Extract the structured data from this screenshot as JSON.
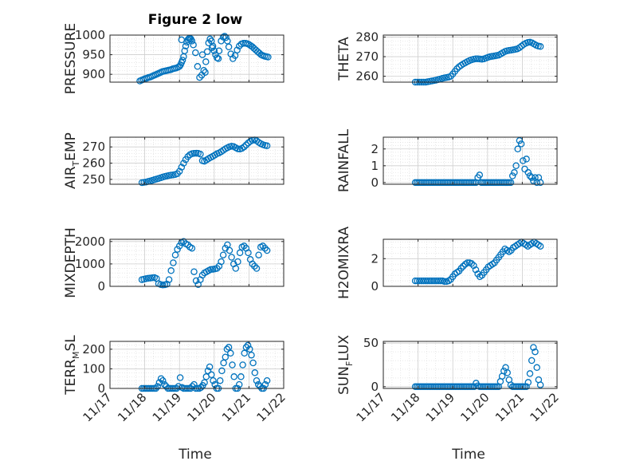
{
  "figure": {
    "title": "Figure 2 low",
    "xlabel": "Time",
    "xticks": [
      "11/17",
      "11/18",
      "11/19",
      "11/20",
      "11/21",
      "11/22"
    ],
    "marker_color": "#0072BD"
  },
  "chart_data": [
    {
      "type": "scatter",
      "ylabel": "PRESSURE",
      "xlim": [
        17.0,
        22.0
      ],
      "ylim": [
        880,
        1000
      ],
      "yticks": [
        900,
        950,
        1000
      ],
      "x": [
        17.86,
        17.91,
        17.96,
        18.01,
        18.06,
        18.11,
        18.16,
        18.21,
        18.26,
        18.31,
        18.36,
        18.41,
        18.46,
        18.51,
        18.56,
        18.61,
        18.66,
        18.71,
        18.76,
        18.81,
        18.86,
        18.91,
        18.96,
        19.0,
        19.03,
        19.06,
        19.09,
        19.12,
        19.15,
        19.18,
        19.21,
        19.24,
        19.27,
        19.3,
        19.33,
        19.36,
        19.4,
        19.46,
        19.52,
        19.58,
        19.64,
        19.7,
        19.76,
        19.8,
        19.84,
        19.88,
        19.92,
        19.96,
        20.0,
        20.04,
        20.08,
        20.14,
        20.2,
        20.26,
        20.3,
        20.34,
        20.38,
        20.42,
        20.48,
        20.54,
        20.6,
        20.66,
        20.72,
        20.78,
        20.84,
        20.9,
        20.95,
        21.0,
        21.05,
        21.1,
        21.15,
        21.2,
        21.25,
        21.3,
        21.35,
        21.4,
        21.45,
        21.5,
        21.55
      ],
      "y": [
        883,
        885,
        887,
        889,
        890,
        892,
        893,
        895,
        897,
        899,
        901,
        903,
        905,
        907,
        908,
        909,
        910,
        911,
        912,
        914,
        915,
        916,
        918,
        920,
        924,
        930,
        936,
        945,
        960,
        972,
        982,
        988,
        991,
        992,
        990,
        985,
        975,
        955,
        920,
        892,
        898,
        910,
        932,
        958,
        980,
        990,
        985,
        972,
        960,
        950,
        942,
        960,
        985,
        995,
        997,
        994,
        985,
        970,
        952,
        940,
        948,
        962,
        972,
        977,
        979,
        979,
        978,
        976,
        973,
        970,
        966,
        962,
        958,
        954,
        950,
        948,
        946,
        945,
        944
      ],
      "extra_points": [
        [
          19.06,
          988
        ],
        [
          19.66,
          950
        ],
        [
          19.74,
          905
        ],
        [
          19.94,
          968
        ],
        [
          20.12,
          940
        ]
      ]
    },
    {
      "type": "scatter",
      "ylabel": "THETA",
      "xlim": [
        17.0,
        22.0
      ],
      "ylim": [
        257,
        281
      ],
      "yticks": [
        260,
        270,
        280
      ],
      "x": [
        17.92,
        17.98,
        18.04,
        18.1,
        18.16,
        18.22,
        18.28,
        18.34,
        18.4,
        18.46,
        18.52,
        18.58,
        18.64,
        18.7,
        18.76,
        18.82,
        18.88,
        18.94,
        19.0,
        19.06,
        19.12,
        19.18,
        19.24,
        19.3,
        19.36,
        19.42,
        19.48,
        19.54,
        19.6,
        19.66,
        19.72,
        19.78,
        19.84,
        19.9,
        19.96,
        20.02,
        20.08,
        20.14,
        20.2,
        20.26,
        20.32,
        20.38,
        20.44,
        20.5,
        20.56,
        20.62,
        20.68,
        20.74,
        20.8,
        20.86,
        20.92,
        20.98,
        21.04,
        21.1,
        21.16,
        21.22,
        21.28,
        21.34,
        21.4,
        21.46,
        21.52
      ],
      "y": [
        257,
        257,
        257,
        257,
        257,
        257,
        257.2,
        257.4,
        257.6,
        257.8,
        258,
        258.3,
        258.6,
        258.9,
        259.2,
        259.4,
        259.6,
        260,
        261.2,
        262.5,
        263.8,
        264.8,
        265.6,
        266.3,
        266.9,
        267.5,
        268,
        268.4,
        268.7,
        268.9,
        268.9,
        268.8,
        268.7,
        268.9,
        269.3,
        269.7,
        270,
        270.2,
        270.4,
        270.6,
        270.8,
        271.4,
        272,
        272.6,
        273,
        273.2,
        273.3,
        273.5,
        273.7,
        274,
        274.6,
        275.4,
        276.2,
        276.8,
        277.2,
        277.4,
        277,
        276.4,
        275.8,
        275.4,
        275.2
      ]
    },
    {
      "type": "scatter",
      "ylabel": "AIR_TEMP",
      "ylabel_main": "AIR",
      "ylabel_sub": "T",
      "ylabel_tail": "EMP",
      "xlim": [
        17.0,
        22.0
      ],
      "ylim": [
        247,
        276
      ],
      "yticks": [
        250,
        260,
        270
      ],
      "x": [
        17.92,
        17.98,
        18.04,
        18.1,
        18.16,
        18.22,
        18.28,
        18.34,
        18.4,
        18.46,
        18.52,
        18.58,
        18.64,
        18.7,
        18.76,
        18.82,
        18.88,
        18.94,
        19.0,
        19.06,
        19.12,
        19.18,
        19.24,
        19.3,
        19.36,
        19.42,
        19.48,
        19.54,
        19.6,
        19.66,
        19.72,
        19.78,
        19.84,
        19.9,
        19.96,
        20.02,
        20.08,
        20.14,
        20.2,
        20.26,
        20.32,
        20.38,
        20.44,
        20.5,
        20.56,
        20.62,
        20.68,
        20.74,
        20.8,
        20.86,
        20.92,
        20.98,
        21.04,
        21.1,
        21.16,
        21.22,
        21.28,
        21.34,
        21.4,
        21.46,
        21.52
      ],
      "y": [
        248,
        248.2,
        248.4,
        248.7,
        249,
        249.4,
        249.8,
        250.2,
        250.6,
        251,
        251.4,
        251.8,
        252.1,
        252.4,
        252.6,
        252.8,
        253,
        253.5,
        255,
        257.5,
        260,
        262.2,
        264,
        265.2,
        265.8,
        266,
        266.1,
        266,
        265.6,
        261.5,
        261.2,
        262,
        262.8,
        263.5,
        264.2,
        265,
        265.8,
        266.3,
        267,
        267.9,
        268.8,
        269.5,
        270.1,
        270.4,
        270.2,
        269.5,
        268.8,
        268.7,
        269.1,
        270,
        271.2,
        272.4,
        273.4,
        274.1,
        274.3,
        273.8,
        272.8,
        272,
        271.4,
        271,
        270.7
      ]
    },
    {
      "type": "scatter",
      "ylabel": "RAINFALL",
      "xlim": [
        17.0,
        22.0
      ],
      "ylim": [
        -0.1,
        2.7
      ],
      "yticks": [
        0,
        1,
        2
      ],
      "x": [
        17.92,
        17.97,
        18.02,
        18.07,
        18.12,
        18.17,
        18.22,
        18.27,
        18.32,
        18.37,
        18.42,
        18.47,
        18.52,
        18.57,
        18.62,
        18.67,
        18.72,
        18.77,
        18.82,
        18.87,
        18.92,
        18.97,
        19.02,
        19.07,
        19.12,
        19.17,
        19.22,
        19.27,
        19.32,
        19.37,
        19.42,
        19.47,
        19.52,
        19.57,
        19.62,
        19.67,
        19.72,
        19.77,
        19.82,
        19.87,
        19.92,
        19.97,
        20.02,
        20.07,
        20.12,
        20.17,
        20.22,
        20.27,
        20.32,
        20.37,
        20.42,
        20.47,
        20.52,
        20.57,
        20.62,
        20.67,
        20.72,
        20.77,
        20.82,
        20.87,
        20.92,
        20.97,
        21.02,
        21.07,
        21.12,
        21.17,
        21.22,
        21.27,
        21.32,
        21.37,
        21.42,
        21.47,
        21.52
      ],
      "y": [
        0,
        0,
        0,
        0,
        0,
        0,
        0,
        0,
        0,
        0,
        0,
        0,
        0,
        0,
        0,
        0,
        0,
        0,
        0,
        0,
        0,
        0,
        0,
        0,
        0,
        0,
        0,
        0,
        0,
        0,
        0,
        0,
        0,
        0,
        0,
        0,
        0.3,
        0.45,
        0,
        0,
        0,
        0,
        0,
        0,
        0,
        0,
        0,
        0,
        0,
        0,
        0,
        0,
        0,
        0,
        0,
        0,
        0.4,
        0.6,
        1.0,
        2.0,
        2.5,
        2.3,
        1.3,
        0.8,
        1.4,
        0.6,
        0.4,
        0.3,
        0.1,
        0.3,
        0,
        0.3,
        0
      ]
    },
    {
      "type": "scatter",
      "ylabel": "MIXDEPTH",
      "xlim": [
        17.0,
        22.0
      ],
      "ylim": [
        0,
        2100
      ],
      "yticks": [
        0,
        1000,
        2000
      ],
      "x": [
        17.92,
        17.98,
        18.04,
        18.1,
        18.16,
        18.22,
        18.28,
        18.34,
        18.4,
        18.46,
        18.52,
        18.58,
        18.64,
        18.7,
        18.76,
        18.82,
        18.88,
        18.94,
        19.0,
        19.06,
        19.12,
        19.18,
        19.24,
        19.3,
        19.36,
        19.42,
        19.48,
        19.54,
        19.6,
        19.66,
        19.72,
        19.78,
        19.84,
        19.9,
        19.96,
        20.02,
        20.08,
        20.14,
        20.2,
        20.26,
        20.32,
        20.38,
        20.44,
        20.5,
        20.56,
        20.62,
        20.68,
        20.74,
        20.8,
        20.86,
        20.92,
        20.98,
        21.04,
        21.1,
        21.16,
        21.22,
        21.28,
        21.34,
        21.4,
        21.46,
        21.52
      ],
      "y": [
        300,
        320,
        340,
        360,
        370,
        380,
        390,
        350,
        120,
        80,
        60,
        70,
        100,
        300,
        700,
        1050,
        1400,
        1650,
        1800,
        1950,
        2000,
        1900,
        1850,
        1750,
        1700,
        650,
        250,
        80,
        300,
        500,
        600,
        650,
        700,
        750,
        760,
        780,
        800,
        900,
        1100,
        1400,
        1700,
        1850,
        1600,
        1300,
        1000,
        800,
        1100,
        1500,
        1750,
        1800,
        1700,
        1500,
        1200,
        1000,
        900,
        800,
        1400,
        1750,
        1800,
        1700,
        1600
      ]
    },
    {
      "type": "scatter",
      "ylabel": "H2OMIXRA",
      "xlim": [
        17.0,
        22.0
      ],
      "ylim": [
        0,
        3.4
      ],
      "yticks": [
        0,
        2
      ],
      "x": [
        17.92,
        17.98,
        18.04,
        18.1,
        18.16,
        18.22,
        18.28,
        18.34,
        18.4,
        18.46,
        18.52,
        18.58,
        18.64,
        18.7,
        18.76,
        18.82,
        18.88,
        18.94,
        19.0,
        19.06,
        19.12,
        19.18,
        19.24,
        19.3,
        19.36,
        19.42,
        19.48,
        19.54,
        19.6,
        19.66,
        19.72,
        19.78,
        19.84,
        19.9,
        19.96,
        20.02,
        20.08,
        20.14,
        20.2,
        20.26,
        20.32,
        20.38,
        20.44,
        20.5,
        20.56,
        20.62,
        20.68,
        20.74,
        20.8,
        20.86,
        20.92,
        20.98,
        21.04,
        21.1,
        21.16,
        21.22,
        21.28,
        21.34,
        21.4,
        21.46,
        21.52
      ],
      "y": [
        0.4,
        0.4,
        0.4,
        0.4,
        0.4,
        0.4,
        0.4,
        0.4,
        0.4,
        0.4,
        0.4,
        0.4,
        0.4,
        0.4,
        0.35,
        0.35,
        0.4,
        0.5,
        0.7,
        0.9,
        1.0,
        1.1,
        1.3,
        1.45,
        1.6,
        1.7,
        1.7,
        1.65,
        1.5,
        1.2,
        0.9,
        0.7,
        0.8,
        1.0,
        1.2,
        1.4,
        1.5,
        1.6,
        1.7,
        1.9,
        2.1,
        2.3,
        2.5,
        2.7,
        2.6,
        2.5,
        2.6,
        2.8,
        2.9,
        3.0,
        3.1,
        3.2,
        3.1,
        3.0,
        2.9,
        3.0,
        3.1,
        3.2,
        3.1,
        3.0,
        2.9
      ]
    },
    {
      "type": "scatter",
      "ylabel": "TERR_MSL",
      "ylabel_main": "TERR",
      "ylabel_sub": "M",
      "ylabel_tail": "SL",
      "xlim": [
        17.0,
        22.0
      ],
      "ylim": [
        0,
        240
      ],
      "yticks": [
        0,
        100,
        200
      ],
      "x": [
        17.92,
        17.97,
        18.02,
        18.07,
        18.12,
        18.17,
        18.22,
        18.27,
        18.32,
        18.37,
        18.42,
        18.47,
        18.52,
        18.57,
        18.62,
        18.67,
        18.72,
        18.77,
        18.82,
        18.87,
        18.92,
        18.97,
        19.02,
        19.07,
        19.12,
        19.17,
        19.22,
        19.27,
        19.32,
        19.37,
        19.42,
        19.47,
        19.52,
        19.57,
        19.62,
        19.67,
        19.72,
        19.77,
        19.82,
        19.87,
        19.92,
        19.97,
        20.02,
        20.07,
        20.12,
        20.17,
        20.22,
        20.27,
        20.32,
        20.37,
        20.42,
        20.47,
        20.52,
        20.57,
        20.62,
        20.67,
        20.72,
        20.77,
        20.82,
        20.87,
        20.92,
        20.97,
        21.02,
        21.07,
        21.12,
        21.17,
        21.22,
        21.27,
        21.32,
        21.37,
        21.42,
        21.47,
        21.52
      ],
      "y": [
        0,
        0,
        0,
        0,
        0,
        0,
        0,
        0,
        0,
        10,
        30,
        50,
        40,
        20,
        10,
        0,
        0,
        0,
        0,
        0,
        0,
        10,
        55,
        5,
        0,
        0,
        0,
        0,
        0,
        10,
        20,
        0,
        0,
        0,
        5,
        15,
        30,
        60,
        90,
        110,
        70,
        40,
        20,
        0,
        0,
        40,
        90,
        130,
        160,
        200,
        210,
        180,
        120,
        60,
        0,
        0,
        20,
        60,
        120,
        180,
        210,
        220,
        200,
        170,
        130,
        80,
        40,
        20,
        10,
        0,
        0,
        20,
        40
      ]
    },
    {
      "type": "scatter",
      "ylabel": "SUN_FLUX",
      "ylabel_main": "SUN",
      "ylabel_sub": "F",
      "ylabel_tail": "LUX",
      "xlim": [
        17.0,
        22.0
      ],
      "ylim": [
        -2,
        52
      ],
      "yticks": [
        0,
        50
      ],
      "x": [
        17.92,
        17.97,
        18.02,
        18.07,
        18.12,
        18.17,
        18.22,
        18.27,
        18.32,
        18.37,
        18.42,
        18.47,
        18.52,
        18.57,
        18.62,
        18.67,
        18.72,
        18.77,
        18.82,
        18.87,
        18.92,
        18.97,
        19.02,
        19.07,
        19.12,
        19.17,
        19.22,
        19.27,
        19.32,
        19.37,
        19.42,
        19.47,
        19.52,
        19.57,
        19.62,
        19.67,
        19.72,
        19.77,
        19.82,
        19.87,
        19.92,
        19.97,
        20.02,
        20.07,
        20.12,
        20.17,
        20.22,
        20.27,
        20.32,
        20.37,
        20.42,
        20.47,
        20.52,
        20.57,
        20.62,
        20.67,
        20.72,
        20.77,
        20.82,
        20.87,
        20.92,
        20.97,
        21.02,
        21.07,
        21.12,
        21.17,
        21.22,
        21.27,
        21.32,
        21.37,
        21.42,
        21.47,
        21.52
      ],
      "y": [
        0,
        0,
        0,
        0,
        0,
        0,
        0,
        0,
        0,
        0,
        0,
        0,
        0,
        0,
        0,
        0,
        0,
        0,
        0,
        0,
        0,
        0,
        0,
        0,
        0,
        0,
        0,
        0,
        0,
        0,
        0,
        0,
        0,
        0,
        0,
        4,
        1,
        0,
        0,
        0,
        0,
        0,
        0,
        0,
        0,
        0,
        0,
        0,
        0,
        6,
        12,
        18,
        22,
        16,
        8,
        2,
        0,
        0,
        0,
        0,
        0,
        0,
        0,
        0,
        0,
        5,
        15,
        30,
        45,
        40,
        22,
        8,
        2
      ]
    }
  ]
}
